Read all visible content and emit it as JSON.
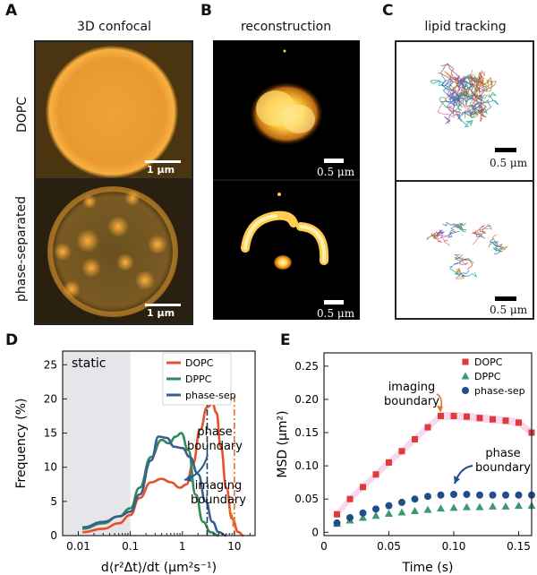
{
  "panel_labels": {
    "a": "A",
    "b": "B",
    "c": "C",
    "d": "D",
    "e": "E"
  },
  "titles": {
    "a": "3D confocal",
    "b": "reconstruction",
    "c": "lipid tracking"
  },
  "row_labels": {
    "top": "DOPC",
    "bottom": "phase-separated"
  },
  "scale": {
    "confocal": "1 μm",
    "recon": "0.5 μm",
    "tracking": "0.5 μm"
  },
  "chart_data": [
    {
      "type": "line",
      "panel": "D",
      "xlabel": "d⟨r²Δt⟩/dt  (μm²s⁻¹)",
      "ylabel": "Frequency  (%)",
      "xscale": "log",
      "xlim": [
        0.005,
        25
      ],
      "ylim": [
        0,
        27
      ],
      "xticks": [
        0.01,
        0.1,
        1,
        10
      ],
      "xtick_labels": [
        "0.01",
        "0.1",
        "1",
        "10"
      ],
      "yticks": [
        0,
        5,
        10,
        15,
        20,
        25
      ],
      "shaded_region": {
        "label": "static",
        "x": [
          0.005,
          0.1
        ]
      },
      "series": [
        {
          "name": "DOPC",
          "color": "#e8502a",
          "x": [
            0.012,
            0.03,
            0.06,
            0.1,
            0.15,
            0.25,
            0.4,
            0.6,
            0.9,
            1.2,
            1.6,
            2.2,
            3.0,
            3.8,
            4.5,
            5.5,
            7,
            9,
            12,
            15
          ],
          "y": [
            0.5,
            1.0,
            1.8,
            3.0,
            5.5,
            7.8,
            8.3,
            7.8,
            7.0,
            7.5,
            10.5,
            15.5,
            18.8,
            19.3,
            18.0,
            13.0,
            7.0,
            2.5,
            0.5,
            0.0
          ]
        },
        {
          "name": "DPPC",
          "color": "#2e8b57",
          "x": [
            0.012,
            0.03,
            0.06,
            0.1,
            0.15,
            0.25,
            0.4,
            0.55,
            0.75,
            0.95,
            1.3,
            1.8,
            2.5,
            3.5,
            5
          ],
          "y": [
            1.0,
            1.8,
            2.8,
            4.0,
            7.0,
            11.5,
            14.0,
            13.5,
            14.5,
            15.0,
            12.5,
            6.0,
            2.0,
            0.5,
            0.0
          ]
        },
        {
          "name": "phase-sep",
          "color": "#3a5f8f",
          "x": [
            0.012,
            0.03,
            0.06,
            0.1,
            0.15,
            0.25,
            0.35,
            0.5,
            0.7,
            1.0,
            1.4,
            2.0,
            2.8,
            3.8,
            5,
            7
          ],
          "y": [
            1.2,
            2.0,
            2.8,
            3.5,
            6.0,
            11.0,
            14.5,
            14.3,
            13.0,
            12.8,
            11.5,
            9.0,
            5.0,
            2.0,
            0.5,
            0.0
          ]
        }
      ],
      "vlines": [
        {
          "label": "phase boundary",
          "x": 3.0,
          "color": "#1f3a5f"
        },
        {
          "label": "imaging boundary",
          "x": 10.0,
          "color": "#e8702a"
        }
      ],
      "annotations": [
        "phase boundary",
        "imaging boundary"
      ]
    },
    {
      "type": "scatter",
      "panel": "E",
      "xlabel": "Time  (s)",
      "ylabel": "MSD  (μm²)",
      "xlim": [
        0,
        0.16
      ],
      "ylim": [
        -0.005,
        0.27
      ],
      "xticks": [
        0,
        0.05,
        0.1,
        0.15
      ],
      "xtick_labels": [
        "0",
        "0.05",
        "0.10",
        "0.15"
      ],
      "yticks": [
        0,
        0.05,
        0.1,
        0.15,
        0.2,
        0.25
      ],
      "ytick_labels": [
        "0",
        "0.05",
        "0.10",
        "0.15",
        "0.20",
        "0.25"
      ],
      "x": [
        0.01,
        0.02,
        0.03,
        0.04,
        0.05,
        0.06,
        0.07,
        0.08,
        0.09,
        0.1,
        0.11,
        0.12,
        0.13,
        0.14,
        0.15,
        0.16
      ],
      "series": [
        {
          "name": "DOPC",
          "color": "#e03a3a",
          "marker": "square",
          "values": [
            0.027,
            0.05,
            0.068,
            0.087,
            0.105,
            0.122,
            0.14,
            0.158,
            0.175,
            0.175,
            0.174,
            0.172,
            0.17,
            0.168,
            0.165,
            0.15
          ]
        },
        {
          "name": "DPPC",
          "color": "#3d9a6e",
          "marker": "triangle",
          "values": [
            0.013,
            0.018,
            0.022,
            0.025,
            0.028,
            0.03,
            0.032,
            0.034,
            0.036,
            0.037,
            0.038,
            0.038,
            0.039,
            0.039,
            0.04,
            0.04
          ]
        },
        {
          "name": "phase-sep",
          "color": "#1f4e8a",
          "marker": "circle",
          "values": [
            0.014,
            0.022,
            0.029,
            0.035,
            0.04,
            0.045,
            0.05,
            0.054,
            0.056,
            0.057,
            0.057,
            0.056,
            0.056,
            0.056,
            0.056,
            0.056
          ]
        }
      ],
      "band_color": "#f3b8dc",
      "annotations": [
        "imaging boundary",
        "phase boundary"
      ]
    }
  ]
}
